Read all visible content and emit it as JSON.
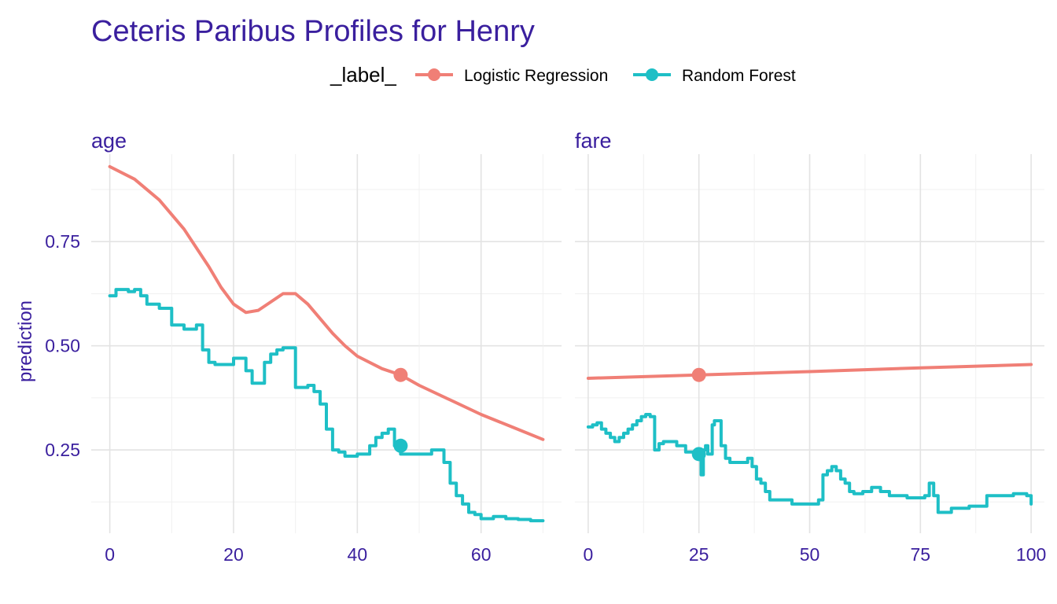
{
  "chart_data": {
    "type": "line",
    "title": "Ceteris Paribus Profiles for Henry",
    "ylabel": "prediction",
    "legend": {
      "title": "_label_",
      "placement": "top",
      "entries": [
        "Logistic Regression",
        "Random Forest"
      ]
    },
    "colors": {
      "Logistic Regression": "#f07f76",
      "Random Forest": "#1ebfc6"
    },
    "ylim": [
      0.05,
      0.96
    ],
    "yticks": [
      0.25,
      0.5,
      0.75
    ],
    "ytick_labels": [
      "0.25",
      "0.50",
      "0.75"
    ],
    "grid": true,
    "panels": [
      {
        "name": "age",
        "xlim": [
          -3,
          73
        ],
        "xticks": [
          0,
          20,
          40,
          60
        ],
        "xtick_labels": [
          "0",
          "20",
          "40",
          "60"
        ],
        "observation_x": 47,
        "series": [
          {
            "name": "Logistic Regression",
            "x": [
              0,
              4,
              8,
              12,
              16,
              18,
              20,
              22,
              24,
              26,
              28,
              30,
              32,
              34,
              36,
              38,
              40,
              44,
              47,
              50,
              55,
              60,
              65,
              70
            ],
            "y": [
              0.93,
              0.9,
              0.85,
              0.78,
              0.69,
              0.64,
              0.6,
              0.58,
              0.585,
              0.605,
              0.625,
              0.625,
              0.6,
              0.565,
              0.53,
              0.5,
              0.475,
              0.445,
              0.43,
              0.405,
              0.37,
              0.335,
              0.305,
              0.275
            ]
          },
          {
            "name": "Random Forest",
            "x": [
              0,
              1,
              3,
              4,
              5,
              6,
              8,
              10,
              12,
              14,
              15,
              16,
              17,
              19,
              20,
              21,
              22,
              23,
              24,
              25,
              26,
              27,
              28,
              29,
              30,
              31,
              32,
              33,
              34,
              35,
              36,
              37,
              38,
              40,
              42,
              43,
              44,
              45,
              46,
              47,
              48,
              50,
              52,
              53,
              54,
              55,
              56,
              57,
              58,
              59,
              60,
              62,
              64,
              66,
              68,
              70
            ],
            "y": [
              0.62,
              0.635,
              0.63,
              0.635,
              0.62,
              0.6,
              0.59,
              0.55,
              0.54,
              0.55,
              0.49,
              0.46,
              0.455,
              0.455,
              0.47,
              0.47,
              0.44,
              0.41,
              0.41,
              0.46,
              0.48,
              0.49,
              0.495,
              0.495,
              0.4,
              0.4,
              0.405,
              0.39,
              0.36,
              0.3,
              0.25,
              0.245,
              0.235,
              0.24,
              0.26,
              0.28,
              0.29,
              0.3,
              0.26,
              0.24,
              0.24,
              0.24,
              0.25,
              0.25,
              0.22,
              0.17,
              0.14,
              0.12,
              0.1,
              0.095,
              0.085,
              0.09,
              0.085,
              0.083,
              0.08,
              0.08
            ]
          }
        ]
      },
      {
        "name": "fare",
        "xlim": [
          -3,
          103
        ],
        "xticks": [
          0,
          25,
          50,
          75,
          100
        ],
        "xtick_labels": [
          "0",
          "25",
          "50",
          "75",
          "100"
        ],
        "observation_x": 25,
        "series": [
          {
            "name": "Logistic Regression",
            "x": [
              0,
              25,
              50,
              75,
              100
            ],
            "y": [
              0.422,
              0.43,
              0.438,
              0.447,
              0.455
            ]
          },
          {
            "name": "Random Forest",
            "x": [
              0,
              1,
              2,
              3,
              4,
              5,
              6,
              7,
              8,
              9,
              10,
              11,
              12,
              13,
              14,
              15,
              16,
              17,
              18,
              20,
              22,
              24,
              25,
              25.5,
              26,
              26.5,
              27,
              28,
              28.5,
              29,
              30,
              31,
              32,
              34,
              36,
              37,
              38,
              39,
              40,
              41,
              42,
              44,
              46,
              48,
              50,
              52,
              53,
              54,
              55,
              56,
              57,
              58,
              59,
              60,
              62,
              64,
              66,
              68,
              70,
              72,
              74,
              76,
              77,
              78,
              79,
              80,
              82,
              84,
              86,
              88,
              90,
              92,
              94,
              96,
              98,
              99,
              100
            ],
            "y": [
              0.305,
              0.31,
              0.315,
              0.3,
              0.29,
              0.28,
              0.27,
              0.28,
              0.29,
              0.3,
              0.31,
              0.32,
              0.33,
              0.335,
              0.33,
              0.25,
              0.265,
              0.27,
              0.27,
              0.26,
              0.245,
              0.24,
              0.245,
              0.19,
              0.25,
              0.26,
              0.24,
              0.31,
              0.32,
              0.32,
              0.26,
              0.23,
              0.22,
              0.22,
              0.23,
              0.21,
              0.18,
              0.17,
              0.15,
              0.13,
              0.13,
              0.13,
              0.12,
              0.12,
              0.12,
              0.13,
              0.19,
              0.2,
              0.21,
              0.2,
              0.18,
              0.17,
              0.15,
              0.145,
              0.15,
              0.16,
              0.15,
              0.14,
              0.14,
              0.135,
              0.135,
              0.14,
              0.17,
              0.14,
              0.1,
              0.1,
              0.11,
              0.11,
              0.115,
              0.115,
              0.14,
              0.14,
              0.14,
              0.145,
              0.145,
              0.14,
              0.12
            ]
          }
        ]
      }
    ]
  }
}
